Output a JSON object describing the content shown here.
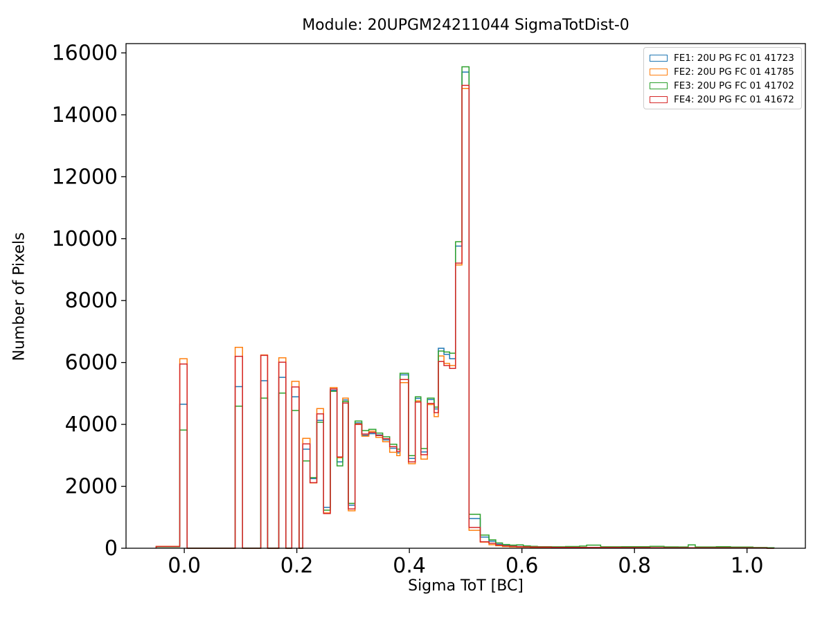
{
  "figure": {
    "title": "Module: 20UPGM24211044 SigmaTotDist-0",
    "xlabel": "Sigma ToT [BC]",
    "ylabel": "Number of Pixels"
  },
  "legend": {
    "items": [
      {
        "label": "FE1: 20U PG FC 01 41723",
        "color": "#1f77b4"
      },
      {
        "label": "FE2: 20U PG FC 01 41785",
        "color": "#ff7f0e"
      },
      {
        "label": "FE3: 20U PG FC 01 41702",
        "color": "#2ca02c"
      },
      {
        "label": "FE4: 20U PG FC 01 41672",
        "color": "#d62728"
      }
    ]
  },
  "chart_data": {
    "type": "bar",
    "style": "step-outline-histogram",
    "title": "Module: 20UPGM24211044 SigmaTotDist-0",
    "xlabel": "Sigma ToT [BC]",
    "ylabel": "Number of Pixels",
    "grid": false,
    "legend_position": "upper right",
    "xlim": [
      -0.1035,
      1.1037
    ],
    "ylim": [
      0,
      16300
    ],
    "x_ticks": [
      0.0,
      0.2,
      0.4,
      0.6,
      0.8,
      1.0
    ],
    "x_tick_labels": [
      "0.0",
      "0.2",
      "0.4",
      "0.6",
      "0.8",
      "1.0"
    ],
    "y_ticks": [
      0,
      2000,
      4000,
      6000,
      8000,
      10000,
      12000,
      14000,
      16000
    ],
    "y_tick_labels": [
      "0",
      "2000",
      "4000",
      "6000",
      "8000",
      "10000",
      "12000",
      "14000",
      "16000"
    ],
    "series_names": [
      "FE1: 20U PG FC 01 41723",
      "FE2: 20U PG FC 01 41785",
      "FE3: 20U PG FC 01 41702",
      "FE4: 20U PG FC 01 41672"
    ],
    "series_colors": [
      "#1f77b4",
      "#ff7f0e",
      "#2ca02c",
      "#d62728"
    ],
    "segments_format": "[x_start, x_end, FE1_value, FE2_value, FE3_value, FE4_value]; gaps between segments are zero counts",
    "segments": [
      [
        -0.05,
        -0.008,
        50,
        62,
        45,
        55
      ],
      [
        -0.008,
        0.005,
        4650,
        6120,
        3820,
        5950
      ],
      [
        0.0905,
        0.1035,
        5220,
        6490,
        4590,
        6200
      ],
      [
        0.136,
        0.148,
        5410,
        6240,
        4850,
        6230
      ],
      [
        0.168,
        0.1805,
        5520,
        6150,
        5010,
        6010
      ],
      [
        0.191,
        0.204,
        4890,
        5390,
        4450,
        5210
      ],
      [
        0.2105,
        0.2235,
        3200,
        3550,
        2820,
        3370
      ],
      [
        0.2235,
        0.2355,
        2250,
        2110,
        2280,
        2120
      ],
      [
        0.2355,
        0.2475,
        4130,
        4510,
        4070,
        4340
      ],
      [
        0.2475,
        0.2595,
        1320,
        1140,
        1230,
        1120
      ],
      [
        0.2595,
        0.2715,
        5100,
        5190,
        5070,
        5150
      ],
      [
        0.2715,
        0.2815,
        2790,
        2920,
        2660,
        2950
      ],
      [
        0.2815,
        0.2915,
        4790,
        4850,
        4740,
        4690
      ],
      [
        0.2915,
        0.3035,
        1390,
        1210,
        1450,
        1270
      ],
      [
        0.3035,
        0.3155,
        4050,
        4020,
        4110,
        4000
      ],
      [
        0.3155,
        0.328,
        3650,
        3620,
        3800,
        3690
      ],
      [
        0.328,
        0.3405,
        3700,
        3780,
        3840,
        3740
      ],
      [
        0.3405,
        0.3525,
        3660,
        3580,
        3720,
        3640
      ],
      [
        0.3525,
        0.365,
        3500,
        3440,
        3600,
        3540
      ],
      [
        0.365,
        0.3775,
        3230,
        3100,
        3360,
        3280
      ],
      [
        0.3775,
        0.3835,
        3080,
        2990,
        3200,
        3130
      ],
      [
        0.3835,
        0.3985,
        5600,
        5350,
        5650,
        5450
      ],
      [
        0.3985,
        0.4105,
        2900,
        2730,
        2990,
        2790
      ],
      [
        0.4105,
        0.4205,
        4840,
        4760,
        4890,
        4720
      ],
      [
        0.4205,
        0.432,
        3110,
        2880,
        3220,
        3020
      ],
      [
        0.432,
        0.444,
        4800,
        4640,
        4850,
        4680
      ],
      [
        0.444,
        0.4515,
        4500,
        4250,
        4560,
        4380
      ],
      [
        0.4515,
        0.4615,
        6460,
        6210,
        6370,
        6030
      ],
      [
        0.4615,
        0.4715,
        6260,
        5970,
        6340,
        5900
      ],
      [
        0.4715,
        0.482,
        6120,
        5900,
        6300,
        5810
      ],
      [
        0.482,
        0.4935,
        9760,
        9150,
        9900,
        9210
      ],
      [
        0.4935,
        0.506,
        15380,
        14850,
        15550,
        14950
      ],
      [
        0.506,
        0.526,
        960,
        580,
        1095,
        670
      ],
      [
        0.526,
        0.5415,
        360,
        200,
        425,
        210
      ],
      [
        0.5415,
        0.5535,
        225,
        115,
        270,
        160
      ],
      [
        0.5535,
        0.5655,
        130,
        80,
        170,
        100
      ],
      [
        0.5655,
        0.578,
        90,
        55,
        120,
        75
      ],
      [
        0.578,
        0.5905,
        70,
        45,
        100,
        60
      ],
      [
        0.5905,
        0.6025,
        55,
        40,
        110,
        50
      ],
      [
        0.6025,
        0.615,
        45,
        35,
        75,
        45
      ],
      [
        0.615,
        0.6275,
        40,
        30,
        60,
        40
      ],
      [
        0.6275,
        0.6525,
        35,
        28,
        52,
        35
      ],
      [
        0.6525,
        0.6775,
        30,
        25,
        48,
        30
      ],
      [
        0.6775,
        0.7025,
        28,
        23,
        55,
        28
      ],
      [
        0.7025,
        0.715,
        25,
        22,
        70,
        26
      ],
      [
        0.715,
        0.74,
        24,
        21,
        100,
        25
      ],
      [
        0.74,
        0.7775,
        22,
        20,
        48,
        24
      ],
      [
        0.7775,
        0.8275,
        20,
        18,
        52,
        22
      ],
      [
        0.8275,
        0.8525,
        18,
        17,
        60,
        20
      ],
      [
        0.8525,
        0.8775,
        17,
        16,
        45,
        19
      ],
      [
        0.8775,
        0.8955,
        16,
        15,
        42,
        18
      ],
      [
        0.8955,
        0.908,
        15,
        14,
        110,
        17
      ],
      [
        0.908,
        0.9455,
        15,
        14,
        42,
        16
      ],
      [
        0.9455,
        0.9705,
        14,
        13,
        50,
        15
      ],
      [
        0.9705,
        0.998,
        13,
        12,
        40,
        14
      ],
      [
        0.998,
        1.0105,
        12,
        12,
        40,
        13
      ],
      [
        1.0105,
        1.0355,
        10,
        10,
        25,
        12
      ],
      [
        1.0355,
        1.048,
        0,
        0,
        18,
        0
      ]
    ]
  }
}
